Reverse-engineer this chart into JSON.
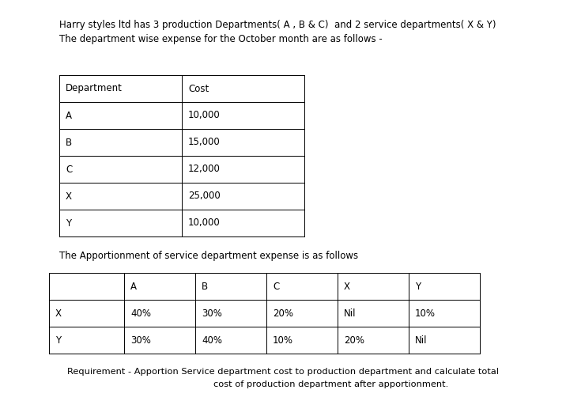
{
  "title_line1": "Harry styles ltd has 3 production Departments( A , B & C)  and 2 service departments( X & Y)",
  "title_line2": "The department wise expense for the October month are as follows -",
  "table1_headers": [
    "Department",
    "Cost"
  ],
  "table1_rows": [
    [
      "A",
      "10,000"
    ],
    [
      "B",
      "15,000"
    ],
    [
      "C",
      "12,000"
    ],
    [
      "X",
      "25,000"
    ],
    [
      "Y",
      "10,000"
    ]
  ],
  "subtitle2": "The Apportionment of service department expense is as follows",
  "table2_headers": [
    "",
    "A",
    "B",
    "C",
    "X",
    "Y"
  ],
  "table2_rows": [
    [
      "X",
      "40%",
      "30%",
      "20%",
      "Nil",
      "10%"
    ],
    [
      "Y",
      "30%",
      "40%",
      "10%",
      "20%",
      "Nil"
    ]
  ],
  "footer_line1": "Requirement - Apportion Service department cost to production department and calculate total",
  "footer_line2": "cost of production department after apportionment.",
  "bg_color": "#ffffff",
  "text_color": "#000000",
  "table_line_color": "#000000",
  "font_size_title": 8.5,
  "font_size_table": 8.5,
  "font_size_footer": 8.2
}
